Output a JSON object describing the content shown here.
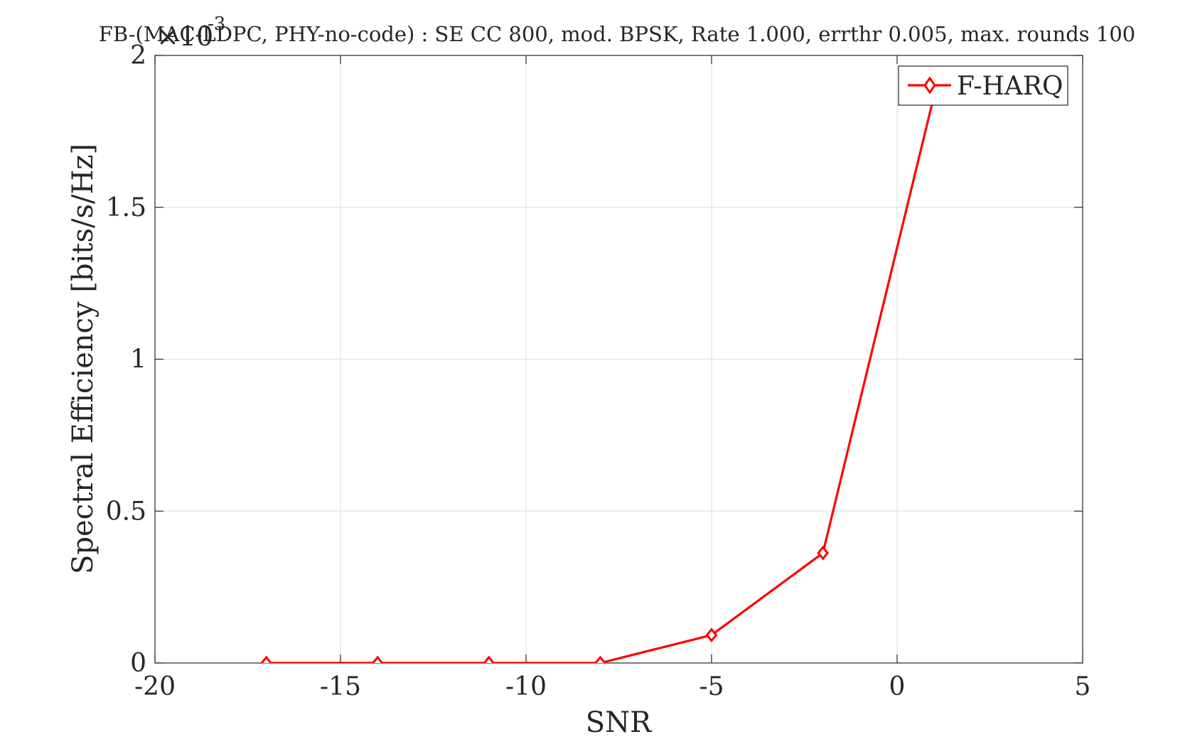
{
  "chart_data": {
    "type": "line",
    "title": "FB-(MAC-LDPC, PHY-no-code) : SE CC 800, mod. BPSK, Rate 1.000, errthr 0.005, max. rounds 100",
    "xlabel": "SNR",
    "ylabel": "Spectral Efficiency [bits/s/Hz]",
    "y_multiplier": "×10",
    "y_multiplier_exponent": "-3",
    "xlim": [
      -20,
      5
    ],
    "ylim": [
      0,
      2
    ],
    "x_ticks": [
      -20,
      -15,
      -10,
      -5,
      0,
      5
    ],
    "x_tick_labels": [
      "-20",
      "-15",
      "-10",
      "-5",
      "0",
      "5"
    ],
    "y_ticks": [
      0,
      0.5,
      1,
      1.5,
      2
    ],
    "y_tick_labels": [
      "0",
      "0.5",
      "1",
      "1.5",
      "2"
    ],
    "grid": true,
    "legend_position": "top-right",
    "series": [
      {
        "name": "F-HARQ",
        "color": "#ff0000",
        "marker": "diamond",
        "x": [
          -17,
          -14,
          -11,
          -8,
          -5,
          -2,
          1
        ],
        "y": [
          0,
          0,
          0,
          0,
          0.092,
          0.362,
          1.87
        ]
      }
    ]
  }
}
